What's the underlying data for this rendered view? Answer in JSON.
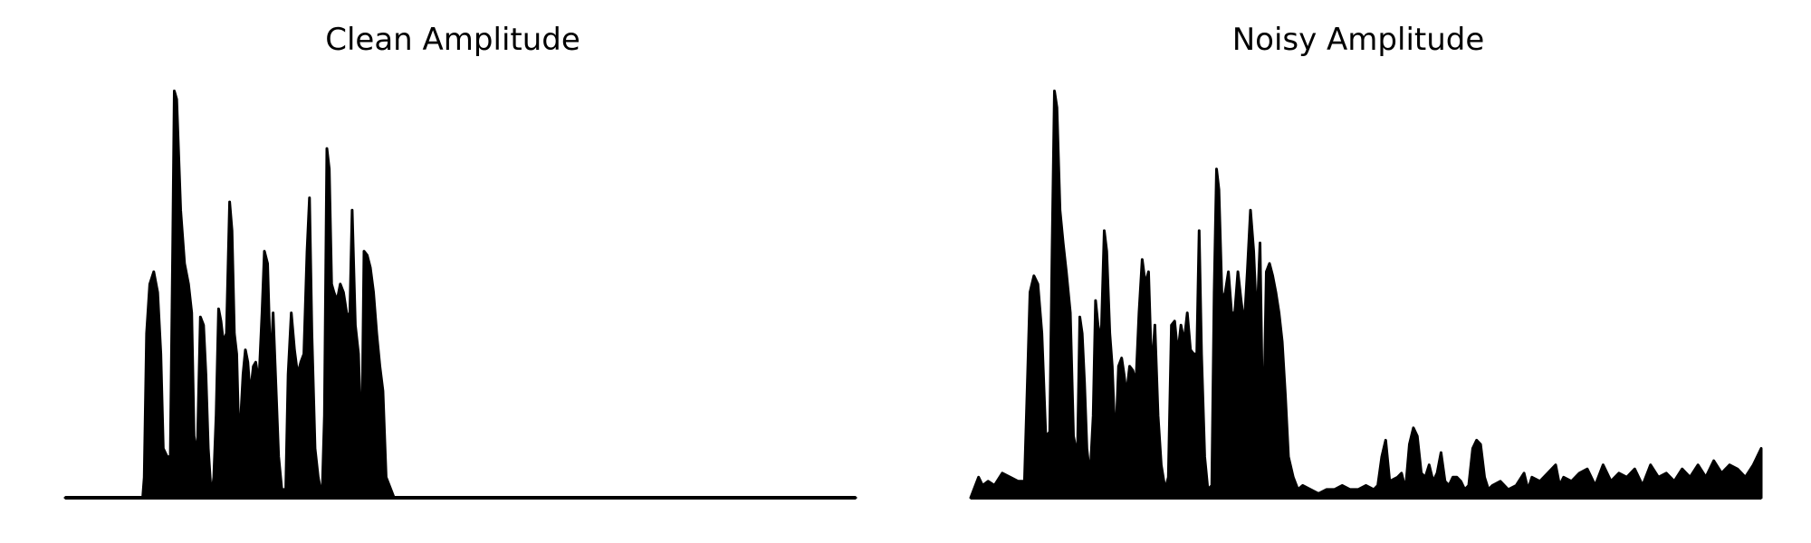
{
  "colors": {
    "background": "#ffffff",
    "trace": "#000000"
  },
  "chart_data": [
    {
      "type": "area",
      "title": "Clean Amplitude",
      "xlabel": "",
      "ylabel": "",
      "axes_visible": false,
      "grid": false,
      "xlim": [
        0,
        1
      ],
      "ylim": [
        0,
        1
      ],
      "series": [
        {
          "values": [
            [
              0.0,
              0.0
            ],
            [
              0.098,
              0.0
            ],
            [
              0.1,
              0.05
            ],
            [
              0.103,
              0.4
            ],
            [
              0.107,
              0.52
            ],
            [
              0.112,
              0.55
            ],
            [
              0.117,
              0.5
            ],
            [
              0.121,
              0.35
            ],
            [
              0.124,
              0.12
            ],
            [
              0.129,
              0.1
            ],
            [
              0.133,
              0.1
            ],
            [
              0.136,
              0.6
            ],
            [
              0.138,
              0.99
            ],
            [
              0.141,
              0.97
            ],
            [
              0.146,
              0.7
            ],
            [
              0.151,
              0.57
            ],
            [
              0.156,
              0.52
            ],
            [
              0.16,
              0.45
            ],
            [
              0.163,
              0.15
            ],
            [
              0.167,
              0.1
            ],
            [
              0.171,
              0.44
            ],
            [
              0.175,
              0.42
            ],
            [
              0.178,
              0.3
            ],
            [
              0.181,
              0.12
            ],
            [
              0.185,
              0.0
            ],
            [
              0.188,
              0.05
            ],
            [
              0.191,
              0.2
            ],
            [
              0.194,
              0.46
            ],
            [
              0.197,
              0.43
            ],
            [
              0.2,
              0.38
            ],
            [
              0.204,
              0.4
            ],
            [
              0.208,
              0.72
            ],
            [
              0.211,
              0.65
            ],
            [
              0.214,
              0.4
            ],
            [
              0.217,
              0.35
            ],
            [
              0.22,
              0.12
            ],
            [
              0.225,
              0.3
            ],
            [
              0.228,
              0.36
            ],
            [
              0.231,
              0.33
            ],
            [
              0.234,
              0.25
            ],
            [
              0.238,
              0.32
            ],
            [
              0.241,
              0.33
            ],
            [
              0.245,
              0.28
            ],
            [
              0.249,
              0.45
            ],
            [
              0.252,
              0.6
            ],
            [
              0.256,
              0.57
            ],
            [
              0.26,
              0.3
            ],
            [
              0.263,
              0.45
            ],
            [
              0.267,
              0.25
            ],
            [
              0.27,
              0.1
            ],
            [
              0.274,
              0.02
            ],
            [
              0.279,
              0.02
            ],
            [
              0.282,
              0.3
            ],
            [
              0.286,
              0.45
            ],
            [
              0.29,
              0.36
            ],
            [
              0.294,
              0.3
            ],
            [
              0.298,
              0.33
            ],
            [
              0.302,
              0.35
            ],
            [
              0.306,
              0.6
            ],
            [
              0.309,
              0.73
            ],
            [
              0.312,
              0.4
            ],
            [
              0.316,
              0.12
            ],
            [
              0.32,
              0.05
            ],
            [
              0.325,
              0.0
            ],
            [
              0.328,
              0.2
            ],
            [
              0.331,
              0.85
            ],
            [
              0.334,
              0.8
            ],
            [
              0.337,
              0.52
            ],
            [
              0.34,
              0.5
            ],
            [
              0.344,
              0.48
            ],
            [
              0.348,
              0.52
            ],
            [
              0.352,
              0.5
            ],
            [
              0.356,
              0.45
            ],
            [
              0.36,
              0.44
            ],
            [
              0.363,
              0.7
            ],
            [
              0.367,
              0.42
            ],
            [
              0.371,
              0.35
            ],
            [
              0.375,
              0.1
            ],
            [
              0.378,
              0.6
            ],
            [
              0.382,
              0.59
            ],
            [
              0.386,
              0.56
            ],
            [
              0.39,
              0.5
            ],
            [
              0.394,
              0.4
            ],
            [
              0.398,
              0.32
            ],
            [
              0.402,
              0.26
            ],
            [
              0.406,
              0.05
            ],
            [
              0.412,
              0.02
            ],
            [
              0.416,
              0.0
            ],
            [
              0.5,
              0.0
            ],
            [
              0.6,
              0.0
            ],
            [
              0.7,
              0.0
            ],
            [
              0.8,
              0.0
            ],
            [
              0.9,
              0.0
            ],
            [
              1.0,
              0.0
            ]
          ]
        }
      ]
    },
    {
      "type": "area",
      "title": "Noisy Amplitude",
      "xlabel": "",
      "ylabel": "",
      "axes_visible": false,
      "grid": false,
      "xlim": [
        0,
        1
      ],
      "ylim": [
        0,
        1
      ],
      "series": [
        {
          "values": [
            [
              0.0,
              0.0
            ],
            [
              0.01,
              0.05
            ],
            [
              0.015,
              0.03
            ],
            [
              0.022,
              0.04
            ],
            [
              0.03,
              0.03
            ],
            [
              0.04,
              0.06
            ],
            [
              0.05,
              0.05
            ],
            [
              0.06,
              0.04
            ],
            [
              0.068,
              0.04
            ],
            [
              0.072,
              0.3
            ],
            [
              0.075,
              0.5
            ],
            [
              0.08,
              0.54
            ],
            [
              0.085,
              0.52
            ],
            [
              0.09,
              0.4
            ],
            [
              0.095,
              0.15
            ],
            [
              0.1,
              0.16
            ],
            [
              0.103,
              0.6
            ],
            [
              0.106,
              0.99
            ],
            [
              0.109,
              0.95
            ],
            [
              0.113,
              0.7
            ],
            [
              0.117,
              0.62
            ],
            [
              0.121,
              0.55
            ],
            [
              0.126,
              0.45
            ],
            [
              0.13,
              0.15
            ],
            [
              0.135,
              0.1
            ],
            [
              0.138,
              0.44
            ],
            [
              0.141,
              0.4
            ],
            [
              0.144,
              0.28
            ],
            [
              0.147,
              0.12
            ],
            [
              0.151,
              0.05
            ],
            [
              0.155,
              0.2
            ],
            [
              0.158,
              0.48
            ],
            [
              0.161,
              0.42
            ],
            [
              0.165,
              0.38
            ],
            [
              0.169,
              0.65
            ],
            [
              0.172,
              0.6
            ],
            [
              0.176,
              0.4
            ],
            [
              0.179,
              0.32
            ],
            [
              0.183,
              0.12
            ],
            [
              0.187,
              0.32
            ],
            [
              0.191,
              0.34
            ],
            [
              0.194,
              0.3
            ],
            [
              0.197,
              0.25
            ],
            [
              0.201,
              0.32
            ],
            [
              0.205,
              0.31
            ],
            [
              0.209,
              0.28
            ],
            [
              0.213,
              0.45
            ],
            [
              0.217,
              0.58
            ],
            [
              0.221,
              0.52
            ],
            [
              0.225,
              0.55
            ],
            [
              0.229,
              0.3
            ],
            [
              0.233,
              0.42
            ],
            [
              0.237,
              0.2
            ],
            [
              0.241,
              0.08
            ],
            [
              0.246,
              0.02
            ],
            [
              0.25,
              0.05
            ],
            [
              0.254,
              0.42
            ],
            [
              0.258,
              0.43
            ],
            [
              0.262,
              0.35
            ],
            [
              0.266,
              0.42
            ],
            [
              0.27,
              0.38
            ],
            [
              0.274,
              0.45
            ],
            [
              0.278,
              0.36
            ],
            [
              0.282,
              0.35
            ],
            [
              0.286,
              0.35
            ],
            [
              0.289,
              0.65
            ],
            [
              0.292,
              0.35
            ],
            [
              0.296,
              0.1
            ],
            [
              0.3,
              0.02
            ],
            [
              0.305,
              0.03
            ],
            [
              0.308,
              0.5
            ],
            [
              0.311,
              0.8
            ],
            [
              0.314,
              0.75
            ],
            [
              0.318,
              0.48
            ],
            [
              0.322,
              0.5
            ],
            [
              0.326,
              0.55
            ],
            [
              0.33,
              0.45
            ],
            [
              0.334,
              0.45
            ],
            [
              0.338,
              0.55
            ],
            [
              0.342,
              0.48
            ],
            [
              0.346,
              0.42
            ],
            [
              0.35,
              0.55
            ],
            [
              0.354,
              0.7
            ],
            [
              0.358,
              0.6
            ],
            [
              0.362,
              0.42
            ],
            [
              0.366,
              0.62
            ],
            [
              0.37,
              0.12
            ],
            [
              0.374,
              0.55
            ],
            [
              0.378,
              0.57
            ],
            [
              0.382,
              0.54
            ],
            [
              0.386,
              0.5
            ],
            [
              0.39,
              0.45
            ],
            [
              0.394,
              0.38
            ],
            [
              0.398,
              0.25
            ],
            [
              0.402,
              0.1
            ],
            [
              0.408,
              0.05
            ],
            [
              0.414,
              0.02
            ],
            [
              0.42,
              0.03
            ],
            [
              0.43,
              0.02
            ],
            [
              0.44,
              0.01
            ],
            [
              0.45,
              0.02
            ],
            [
              0.46,
              0.02
            ],
            [
              0.47,
              0.03
            ],
            [
              0.48,
              0.02
            ],
            [
              0.49,
              0.02
            ],
            [
              0.5,
              0.03
            ],
            [
              0.51,
              0.02
            ],
            [
              0.515,
              0.03
            ],
            [
              0.52,
              0.1
            ],
            [
              0.525,
              0.14
            ],
            [
              0.53,
              0.04
            ],
            [
              0.54,
              0.05
            ],
            [
              0.545,
              0.06
            ],
            [
              0.55,
              0.02
            ],
            [
              0.555,
              0.13
            ],
            [
              0.56,
              0.17
            ],
            [
              0.565,
              0.15
            ],
            [
              0.57,
              0.06
            ],
            [
              0.575,
              0.05
            ],
            [
              0.58,
              0.08
            ],
            [
              0.585,
              0.04
            ],
            [
              0.59,
              0.06
            ],
            [
              0.595,
              0.11
            ],
            [
              0.6,
              0.04
            ],
            [
              0.605,
              0.03
            ],
            [
              0.61,
              0.05
            ],
            [
              0.615,
              0.05
            ],
            [
              0.62,
              0.04
            ],
            [
              0.625,
              0.02
            ],
            [
              0.63,
              0.03
            ],
            [
              0.635,
              0.12
            ],
            [
              0.64,
              0.14
            ],
            [
              0.645,
              0.13
            ],
            [
              0.65,
              0.05
            ],
            [
              0.655,
              0.02
            ],
            [
              0.66,
              0.03
            ],
            [
              0.67,
              0.04
            ],
            [
              0.68,
              0.02
            ],
            [
              0.69,
              0.03
            ],
            [
              0.7,
              0.06
            ],
            [
              0.705,
              0.02
            ],
            [
              0.71,
              0.05
            ],
            [
              0.72,
              0.04
            ],
            [
              0.73,
              0.06
            ],
            [
              0.74,
              0.08
            ],
            [
              0.745,
              0.03
            ],
            [
              0.75,
              0.05
            ],
            [
              0.76,
              0.04
            ],
            [
              0.77,
              0.06
            ],
            [
              0.78,
              0.07
            ],
            [
              0.79,
              0.03
            ],
            [
              0.8,
              0.08
            ],
            [
              0.81,
              0.04
            ],
            [
              0.82,
              0.06
            ],
            [
              0.83,
              0.05
            ],
            [
              0.84,
              0.07
            ],
            [
              0.85,
              0.03
            ],
            [
              0.86,
              0.08
            ],
            [
              0.87,
              0.05
            ],
            [
              0.88,
              0.06
            ],
            [
              0.89,
              0.04
            ],
            [
              0.9,
              0.07
            ],
            [
              0.91,
              0.05
            ],
            [
              0.92,
              0.08
            ],
            [
              0.93,
              0.05
            ],
            [
              0.94,
              0.09
            ],
            [
              0.95,
              0.06
            ],
            [
              0.96,
              0.08
            ],
            [
              0.97,
              0.07
            ],
            [
              0.98,
              0.05
            ],
            [
              0.99,
              0.08
            ],
            [
              1.0,
              0.12
            ]
          ]
        }
      ]
    }
  ]
}
